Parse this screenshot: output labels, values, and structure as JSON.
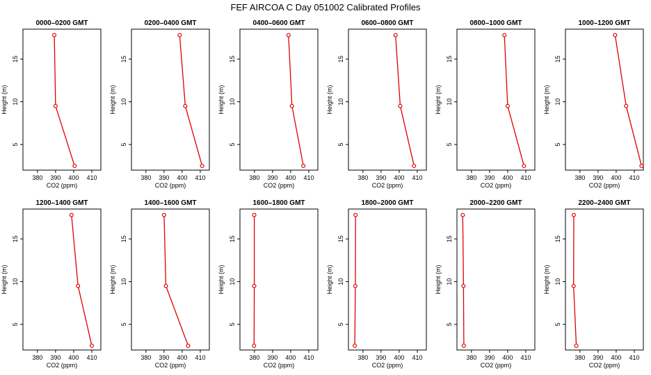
{
  "figure_title": "FEF AIRCOA C  Day 051002  Calibrated Profiles",
  "colors": {
    "line": "#dd0000",
    "marker": "#dd0000",
    "axis": "#000000"
  },
  "chart_data": {
    "type": "line",
    "xlabel": "CO2 (ppm)",
    "ylabel": "Height (m)",
    "xlim": [
      372,
      415
    ],
    "ylim": [
      2.0,
      18.5
    ],
    "xticks": [
      380,
      390,
      400,
      410
    ],
    "yticks": [
      5,
      10,
      15
    ],
    "heights": [
      2.5,
      9.5,
      17.8
    ],
    "panels": [
      {
        "title": "0000–0200 GMT",
        "co2": [
          400.5,
          390.0,
          389.3
        ]
      },
      {
        "title": "0200–0400 GMT",
        "co2": [
          411.0,
          401.7,
          398.6
        ]
      },
      {
        "title": "0400–0600 GMT",
        "co2": [
          407.0,
          400.7,
          398.8
        ]
      },
      {
        "title": "0600–0800 GMT",
        "co2": [
          408.2,
          400.6,
          398.0
        ]
      },
      {
        "title": "0800–1000 GMT",
        "co2": [
          409.0,
          400.0,
          398.2
        ]
      },
      {
        "title": "1000–1200 GMT",
        "co2": [
          414.0,
          405.5,
          399.4
        ]
      },
      {
        "title": "1200–1400 GMT",
        "co2": [
          410.0,
          402.4,
          398.8
        ]
      },
      {
        "title": "1400–1600 GMT",
        "co2": [
          403.3,
          391.0,
          390.0
        ]
      },
      {
        "title": "1600–1800 GMT",
        "co2": [
          379.8,
          379.9,
          379.9
        ]
      },
      {
        "title": "1800–2000 GMT",
        "co2": [
          375.5,
          375.8,
          375.9
        ]
      },
      {
        "title": "2000–2200 GMT",
        "co2": [
          375.8,
          375.6,
          375.2
        ]
      },
      {
        "title": "2200–2400 GMT",
        "co2": [
          378.0,
          376.5,
          376.6
        ]
      }
    ]
  }
}
